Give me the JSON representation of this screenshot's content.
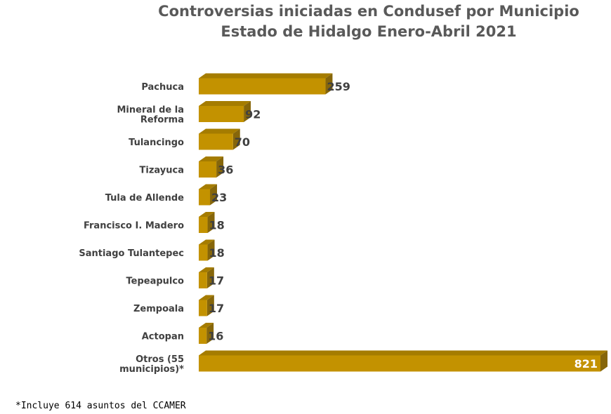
{
  "chart_data": {
    "type": "bar",
    "orientation": "horizontal",
    "title": "Controversias iniciadas en Condusef por Municipio",
    "subtitle": "Estado de Hidalgo Enero-Abril 2021",
    "categories": [
      "Pachuca",
      "Mineral de la Reforma",
      "Tulancingo",
      "Tizayuca",
      "Tula de Allende",
      "Francisco I. Madero",
      "Santiago Tulantepec",
      "Tepeapulco",
      "Zempoala",
      "Actopan",
      "Otros (55 municipios)*"
    ],
    "category_lines": [
      [
        "Pachuca"
      ],
      [
        "Mineral de la",
        "Reforma"
      ],
      [
        "Tulancingo"
      ],
      [
        "Tizayuca"
      ],
      [
        "Tula de Allende"
      ],
      [
        "Francisco I. Madero"
      ],
      [
        "Santiago Tulantepec"
      ],
      [
        "Tepeapulco"
      ],
      [
        "Zempoala"
      ],
      [
        "Actopan"
      ],
      [
        "Otros (55",
        "municipios)*"
      ]
    ],
    "values": [
      259,
      92,
      70,
      36,
      23,
      18,
      18,
      17,
      17,
      16,
      821
    ],
    "xlim": [
      0,
      821
    ],
    "grid": false,
    "colors": {
      "front": "#C39200",
      "top": "#A57C00",
      "side": "#86660A",
      "label": "#404040",
      "inner_label": "#FFFFFF"
    }
  },
  "footnote": "*Incluye 614 asuntos del CCAMER"
}
